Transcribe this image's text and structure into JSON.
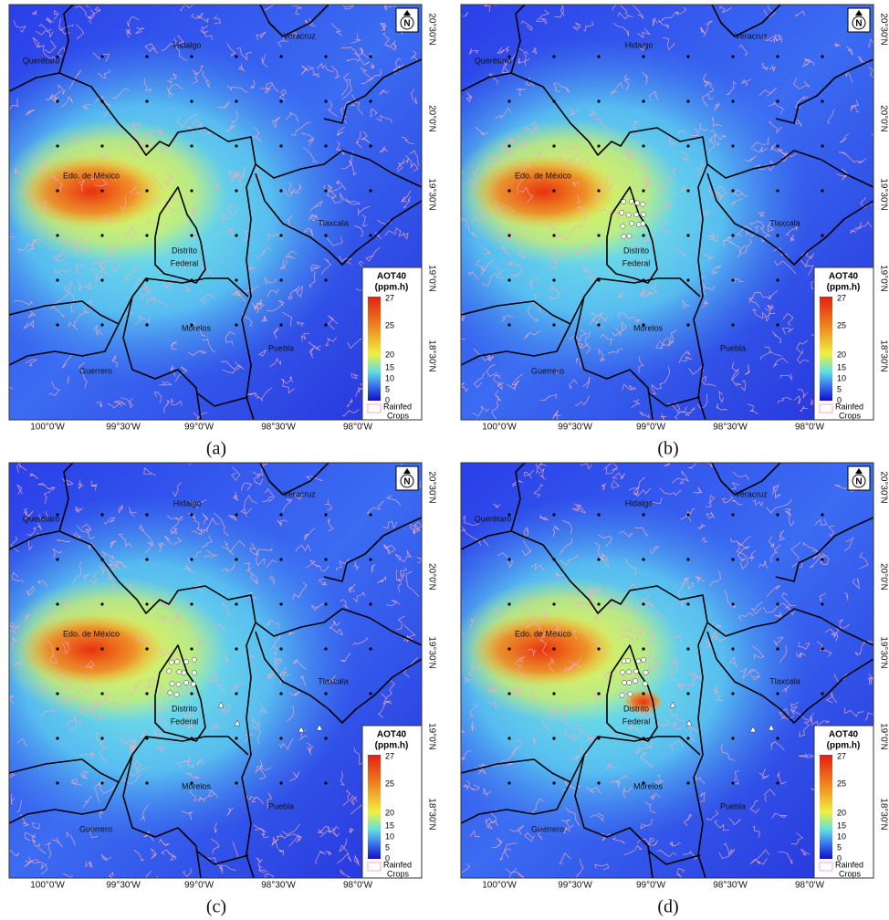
{
  "figure": {
    "panels": [
      {
        "label": "(a)"
      },
      {
        "label": "(b)"
      },
      {
        "label": "(c)"
      },
      {
        "label": "(d)"
      }
    ],
    "map": {
      "regions": [
        "Querétaro",
        "Hidalgo",
        "Veracruz",
        "Edo. de México",
        "Distrito",
        "Federal",
        "Tlaxcala",
        "Morelos",
        "Puebla",
        "Guerrero"
      ],
      "lat_ticks": [
        "20°30'N",
        "20°0'N",
        "19°30'N",
        "19°0'N",
        "18°30'N"
      ],
      "lon_ticks": [
        "100°0'W",
        "99°30'W",
        "99°0'W",
        "98°30'W",
        "98°0'W"
      ],
      "north": "N",
      "legend": {
        "title": "AOT40",
        "unit": "(ppm.h)",
        "ticks": [
          27,
          25,
          20,
          15,
          10,
          5,
          0
        ],
        "crops": [
          "Rainfed",
          "Crops"
        ]
      }
    }
  }
}
